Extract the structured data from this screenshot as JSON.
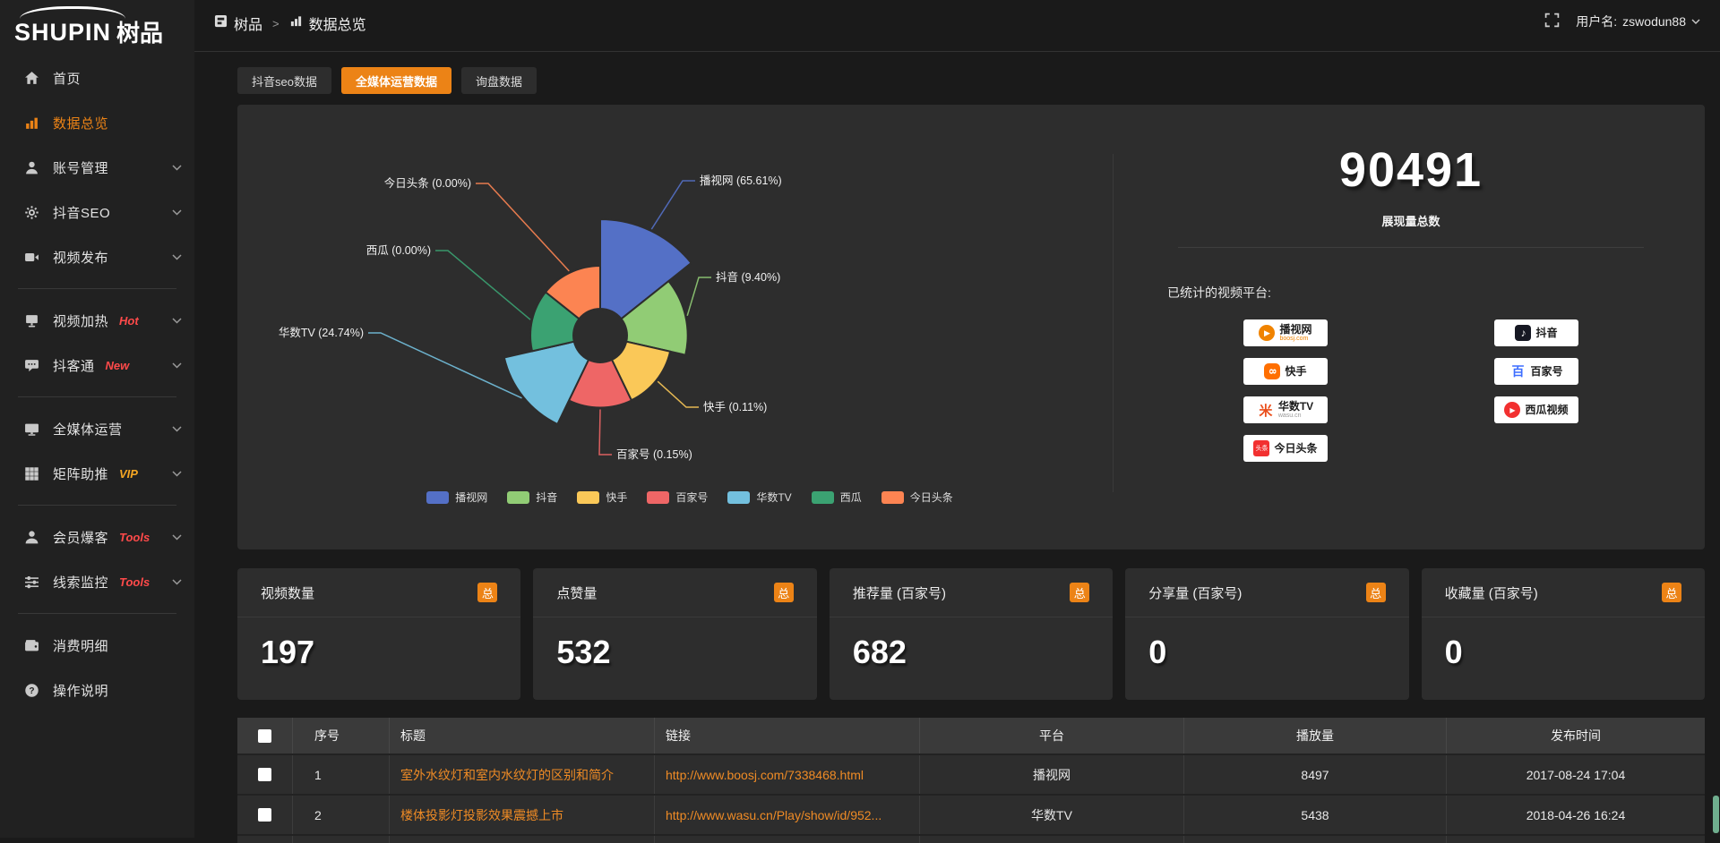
{
  "logo": {
    "brand_en": "SHUPIN",
    "brand_cn": "树品"
  },
  "topbar": {
    "breadcrumb_root": "树品",
    "breadcrumb_sep": ">",
    "breadcrumb_current": "数据总览",
    "username_label": "用户名:",
    "username": "zswodun88"
  },
  "sidebar": {
    "items": [
      {
        "key": "home",
        "label": "首页",
        "icon": "home-icon"
      },
      {
        "key": "data-overview",
        "label": "数据总览",
        "icon": "bar-chart-icon",
        "active": true
      },
      {
        "key": "account-management",
        "label": "账号管理",
        "icon": "user-icon",
        "chevron": true
      },
      {
        "key": "douyin-seo",
        "label": "抖音SEO",
        "icon": "gear-icon",
        "chevron": true
      },
      {
        "key": "video-publish",
        "label": "视频发布",
        "icon": "video-camera-icon",
        "chevron": true
      },
      {
        "divider": true
      },
      {
        "key": "video-heating",
        "label": "视频加热",
        "icon": "monitor-stand-icon",
        "badge": "Hot",
        "badge_color": "#ff4a4a",
        "chevron": true
      },
      {
        "key": "douketong",
        "label": "抖客通",
        "icon": "chat-icon",
        "badge": "New",
        "badge_color": "#ff4a4a",
        "chevron": true
      },
      {
        "divider": true
      },
      {
        "key": "omnimedia-operation",
        "label": "全媒体运营",
        "icon": "monitor-icon",
        "chevron": true
      },
      {
        "key": "matrix-boost",
        "label": "矩阵助推",
        "icon": "grid-icon",
        "badge": "VIP",
        "badge_color": "#f5a623",
        "chevron": true
      },
      {
        "divider": true
      },
      {
        "key": "member-baoke",
        "label": "会员爆客",
        "icon": "member-icon",
        "badge": "Tools",
        "badge_color": "#ff4a4a",
        "chevron": true
      },
      {
        "key": "lead-monitoring",
        "label": "线索监控",
        "icon": "sliders-icon",
        "badge": "Tools",
        "badge_color": "#ff4a4a",
        "chevron": true
      },
      {
        "divider": true
      },
      {
        "key": "consumption-details",
        "label": "消费明细",
        "icon": "wallet-icon"
      },
      {
        "key": "operation-guide",
        "label": "操作说明",
        "icon": "question-icon"
      }
    ]
  },
  "tabs": [
    {
      "key": "douyin-seo-data",
      "label": "抖音seo数据"
    },
    {
      "key": "omnimedia-operation-data",
      "label": "全媒体运营数据",
      "active": true
    },
    {
      "key": "inquiry-data",
      "label": "询盘数据"
    }
  ],
  "chart_data": {
    "type": "pie",
    "variant": "nightingale-rose",
    "label_format": "{name} ({pct}%)",
    "legend_position": "bottom",
    "items": [
      {
        "key": "boosj",
        "name": "播视网",
        "pct": 65.61,
        "color": "#5470c6"
      },
      {
        "key": "douyin",
        "name": "抖音",
        "pct": 9.4,
        "color": "#91cc75"
      },
      {
        "key": "kuaishou",
        "name": "快手",
        "pct": 0.11,
        "color": "#fac858"
      },
      {
        "key": "baijiahao",
        "name": "百家号",
        "pct": 0.15,
        "color": "#ee6666"
      },
      {
        "key": "wasu",
        "name": "华数TV",
        "pct": 24.74,
        "color": "#73c0de"
      },
      {
        "key": "xigua",
        "name": "西瓜",
        "pct": 0.0,
        "color": "#3ba272"
      },
      {
        "key": "toutiao",
        "name": "今日头条",
        "pct": 0.0,
        "color": "#fc8452"
      }
    ],
    "legend": [
      "播视网",
      "抖音",
      "快手",
      "百家号",
      "华数TV",
      "西瓜",
      "今日头条"
    ]
  },
  "summary": {
    "total_value": "90491",
    "total_label": "展现量总数",
    "platforms_label": "已统计的视频平台:",
    "platforms": [
      {
        "key": "boosj",
        "name": "播视网",
        "sub": "boosj.com",
        "sub_color": "#f08300",
        "icon": "boosj-logo"
      },
      {
        "key": "douyin",
        "name": "抖音",
        "icon": "douyin-logo"
      },
      {
        "key": "kuaishou",
        "name": "快手",
        "icon": "kuaishou-logo"
      },
      {
        "key": "baijiahao",
        "name": "百家号",
        "icon": "baijiahao-logo"
      },
      {
        "key": "wasu",
        "name": "华数TV",
        "sub": "wasu.cn",
        "sub_color": "#999999",
        "icon": "wasu-logo"
      },
      {
        "key": "xigua",
        "name": "西瓜视频",
        "icon": "xigua-logo"
      },
      {
        "key": "toutiao",
        "name": "今日头条",
        "icon": "toutiao-logo"
      }
    ]
  },
  "stat_cards": [
    {
      "key": "video-count",
      "title": "视频数量",
      "badge": "总",
      "value": "197"
    },
    {
      "key": "like-count",
      "title": "点赞量",
      "badge": "总",
      "value": "532"
    },
    {
      "key": "recommend-count",
      "title": "推荐量 (百家号)",
      "badge": "总",
      "value": "682"
    },
    {
      "key": "share-count",
      "title": "分享量 (百家号)",
      "badge": "总",
      "value": "0"
    },
    {
      "key": "favorite-count",
      "title": "收藏量 (百家号)",
      "badge": "总",
      "value": "0"
    }
  ],
  "table": {
    "columns": [
      "序号",
      "标题",
      "链接",
      "平台",
      "播放量",
      "发布时间"
    ],
    "rows": [
      {
        "index": "1",
        "title": "室外水纹灯和室内水纹灯的区别和简介",
        "link": "http://www.boosj.com/7338468.html",
        "platform": "播视网",
        "plays": "8497",
        "published": "2017-08-24 17:04"
      },
      {
        "index": "2",
        "title": "楼体投影灯投影效果震撼上市",
        "link": "http://www.wasu.cn/Play/show/id/952...",
        "platform": "华数TV",
        "plays": "5438",
        "published": "2018-04-26 16:24"
      }
    ]
  },
  "colors": {
    "accent": "#ec8316",
    "link": "#ef8b25",
    "panel": "#2d2d2d"
  }
}
